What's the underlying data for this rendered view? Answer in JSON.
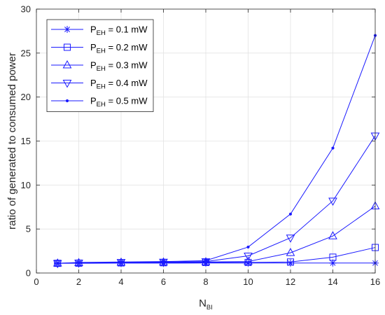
{
  "chart_data": {
    "type": "line",
    "xlabel": "N",
    "xlabel_sub": "BI",
    "ylabel": "ratio of generated to consumed power",
    "xlim": [
      0,
      16
    ],
    "ylim": [
      0,
      30
    ],
    "xticks": [
      0,
      2,
      4,
      6,
      8,
      10,
      12,
      14,
      16
    ],
    "yticks": [
      0,
      5,
      10,
      15,
      20,
      25,
      30
    ],
    "grid": true,
    "legend_position": "top-left",
    "color": "#1a1aff",
    "x": [
      1,
      2,
      4,
      6,
      8,
      10,
      12,
      14,
      16
    ],
    "series": [
      {
        "name": "P_EH = 0.1 mW",
        "label_main": "P",
        "label_sub": "EH",
        "label_rest": " = 0.1 mW",
        "marker": "asterisk",
        "values": [
          1.1,
          1.1,
          1.12,
          1.12,
          1.13,
          1.13,
          1.13,
          1.13,
          1.13
        ]
      },
      {
        "name": "P_EH = 0.2 mW",
        "label_main": "P",
        "label_sub": "EH",
        "label_rest": " = 0.2 mW",
        "marker": "square",
        "values": [
          1.1,
          1.12,
          1.15,
          1.17,
          1.2,
          1.2,
          1.25,
          1.8,
          2.9
        ]
      },
      {
        "name": "P_EH = 0.3 mW",
        "label_main": "P",
        "label_sub": "EH",
        "label_rest": " = 0.3 mW",
        "marker": "triangle-up",
        "values": [
          1.1,
          1.15,
          1.2,
          1.22,
          1.25,
          1.3,
          2.3,
          4.2,
          7.6
        ]
      },
      {
        "name": "P_EH = 0.4 mW",
        "label_main": "P",
        "label_sub": "EH",
        "label_rest": " = 0.4 mW",
        "marker": "triangle-down",
        "values": [
          1.1,
          1.15,
          1.22,
          1.25,
          1.3,
          1.95,
          4.0,
          8.2,
          15.6
        ]
      },
      {
        "name": "P_EH = 0.5 mW",
        "label_main": "P",
        "label_sub": "EH",
        "label_rest": " = 0.5 mW",
        "marker": "dot",
        "values": [
          1.1,
          1.2,
          1.25,
          1.3,
          1.4,
          2.95,
          6.7,
          14.2,
          27.0
        ]
      }
    ]
  }
}
